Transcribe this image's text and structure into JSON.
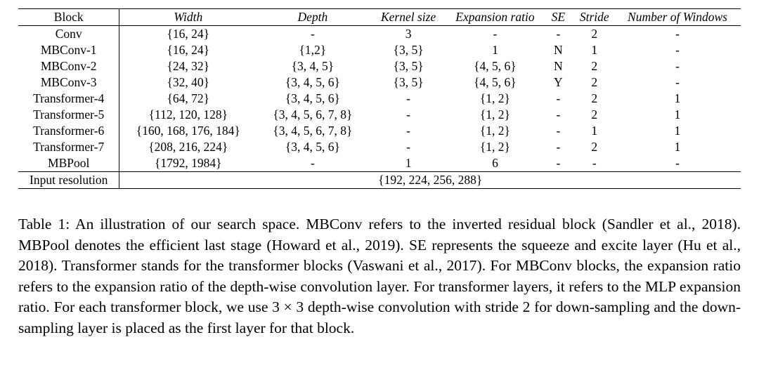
{
  "table": {
    "headers": [
      "Block",
      "Width",
      "Depth",
      "Kernel size",
      "Expansion ratio",
      "SE",
      "Stride",
      "Number of Windows"
    ],
    "col_widths_pct": [
      14,
      19,
      15.5,
      11,
      13,
      4.5,
      5.5,
      17.5
    ],
    "rows": [
      [
        "Conv",
        "{16, 24}",
        "-",
        "3",
        "-",
        "-",
        "2",
        "-"
      ],
      [
        "MBConv-1",
        "{16, 24}",
        "{1,2}",
        "{3, 5}",
        "1",
        "N",
        "1",
        "-"
      ],
      [
        "MBConv-2",
        "{24, 32}",
        "{3, 4, 5}",
        "{3, 5}",
        "{4, 5, 6}",
        "N",
        "2",
        "-"
      ],
      [
        "MBConv-3",
        "{32, 40}",
        "{3, 4, 5, 6}",
        "{3, 5}",
        "{4, 5, 6}",
        "Y",
        "2",
        "-"
      ],
      [
        "Transformer-4",
        "{64, 72}",
        "{3, 4, 5, 6}",
        "-",
        "{1, 2}",
        "-",
        "2",
        "1"
      ],
      [
        "Transformer-5",
        "{112, 120, 128}",
        "{3, 4, 5, 6, 7, 8}",
        "-",
        "{1, 2}",
        "-",
        "2",
        "1"
      ],
      [
        "Transformer-6",
        "{160, 168, 176, 184}",
        "{3, 4, 5, 6, 7, 8}",
        "-",
        "{1, 2}",
        "-",
        "1",
        "1"
      ],
      [
        "Transformer-7",
        "{208, 216, 224}",
        "{3, 4, 5, 6}",
        "-",
        "{1, 2}",
        "-",
        "2",
        "1"
      ],
      [
        "MBPool",
        "{1792, 1984}",
        "-",
        "1",
        "6",
        "-",
        "-",
        "-"
      ]
    ],
    "footer_row": {
      "label": "Input resolution",
      "value": "{192, 224, 256, 288}"
    }
  },
  "caption": {
    "text": "Table 1: An illustration of our search space. MBConv refers to the inverted residual block (Sandler et al., 2018). MBPool denotes the efficient last stage (Howard et al., 2019). SE represents the squeeze and excite layer (Hu et al., 2018). Transformer stands for the transformer blocks (Vaswani et al., 2017). For MBConv blocks, the expansion ratio refers to the expansion ratio of the depth-wise convolution layer. For transformer layers, it refers to the MLP expansion ratio. For each transformer block, we use 3 × 3 depth-wise convolution with stride 2 for down-sampling and the down-sampling layer is placed as the first layer for that block."
  }
}
